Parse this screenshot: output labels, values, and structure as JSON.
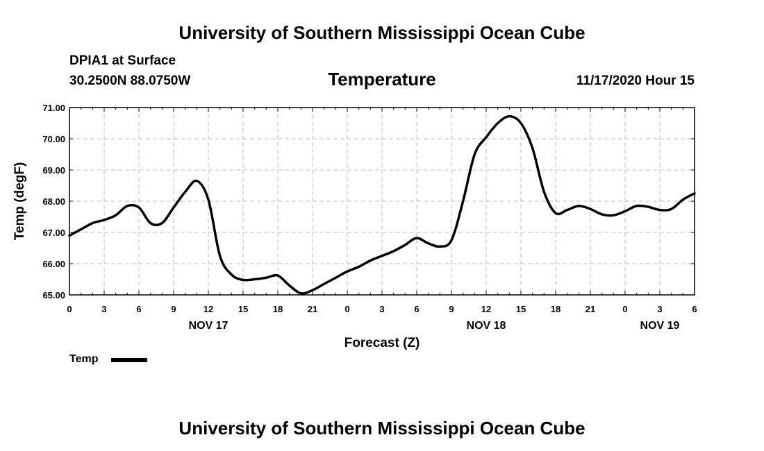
{
  "header": {
    "title_top": "University of Southern Mississippi Ocean Cube",
    "title_bottom": "University of Southern Mississippi Ocean Cube",
    "station": "DPIA1 at Surface",
    "location": "30.2500N 88.0750W",
    "datetime": "11/17/2020 Hour 15"
  },
  "chart_data": {
    "type": "line",
    "title": "Temperature",
    "xlabel": "Forecast (Z)",
    "ylabel": "Temp (degF)",
    "ylim": [
      65.0,
      71.0
    ],
    "xlim_hours": [
      0,
      54
    ],
    "grid": true,
    "y_ticks": [
      "65.00",
      "66.00",
      "67.00",
      "68.00",
      "69.00",
      "70.00",
      "71.00"
    ],
    "x_tick_labels": [
      "0",
      "3",
      "6",
      "9",
      "12",
      "15",
      "18",
      "21",
      "0",
      "3",
      "6",
      "9",
      "12",
      "15",
      "18",
      "21",
      "0",
      "3",
      "6"
    ],
    "day_labels": [
      {
        "label": "NOV 17",
        "hour": 12
      },
      {
        "label": "NOV 18",
        "hour": 36
      },
      {
        "label": "NOV 19",
        "hour": 51
      }
    ],
    "legend": {
      "label": "Temp",
      "position": "bottom-left"
    },
    "series": [
      {
        "name": "Temp",
        "x": [
          0,
          1,
          2,
          3,
          4,
          5,
          6,
          7,
          8,
          9,
          10,
          11,
          12,
          13,
          14,
          15,
          16,
          17,
          18,
          19,
          20,
          21,
          22,
          23,
          24,
          25,
          26,
          27,
          28,
          29,
          30,
          31,
          32,
          33,
          34,
          35,
          36,
          37,
          38,
          39,
          40,
          41,
          42,
          43,
          44,
          45,
          46,
          47,
          48,
          49,
          50,
          51,
          52,
          53,
          54
        ],
        "values": [
          66.9,
          67.1,
          67.3,
          67.4,
          67.55,
          67.85,
          67.8,
          67.3,
          67.3,
          67.8,
          68.3,
          68.65,
          68.05,
          66.25,
          65.65,
          65.48,
          65.5,
          65.55,
          65.62,
          65.3,
          65.05,
          65.15,
          65.35,
          65.55,
          65.75,
          65.9,
          66.1,
          66.25,
          66.4,
          66.6,
          66.82,
          66.65,
          66.55,
          66.75,
          68.0,
          69.5,
          70.05,
          70.5,
          70.72,
          70.5,
          69.7,
          68.3,
          67.62,
          67.72,
          67.85,
          67.75,
          67.58,
          67.55,
          67.68,
          67.85,
          67.82,
          67.72,
          67.75,
          68.05,
          68.25
        ]
      }
    ]
  }
}
